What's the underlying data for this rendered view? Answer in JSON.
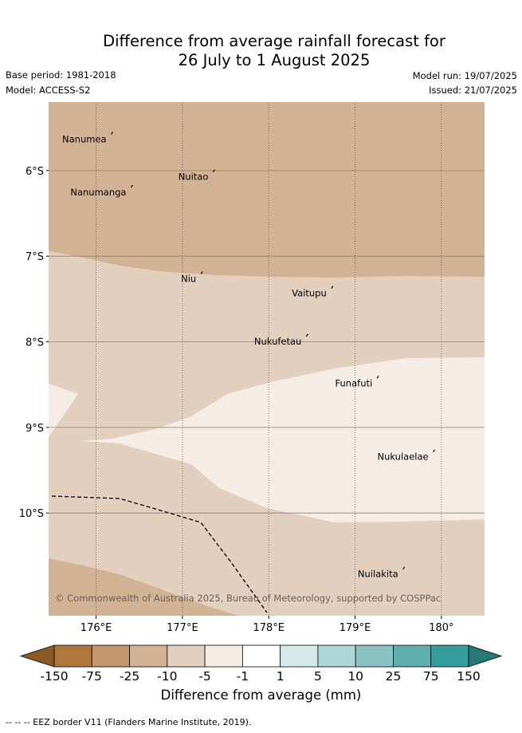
{
  "title": {
    "line1": "Difference from average rainfall forecast for",
    "line2": "26 July to 1 August 2025"
  },
  "meta": {
    "base_period": "Base period: 1981-2018",
    "model": "Model: ACCESS-S2",
    "model_run": "Model run: 19/07/2025",
    "issued": "Issued: 21/07/2025"
  },
  "map": {
    "lon_range": [
      175.45,
      180.5
    ],
    "lat_range": [
      -11.2,
      -5.2
    ],
    "lat_ticks": [
      {
        "value": -6,
        "label": "6°S"
      },
      {
        "value": -7,
        "label": "7°S"
      },
      {
        "value": -8,
        "label": "8°S"
      },
      {
        "value": -9,
        "label": "9°S"
      },
      {
        "value": -10,
        "label": "10°S"
      }
    ],
    "lon_ticks": [
      {
        "value": 176,
        "label": "176°E"
      },
      {
        "value": 177,
        "label": "177°E"
      },
      {
        "value": 178,
        "label": "178°E"
      },
      {
        "value": 179,
        "label": "179°E"
      },
      {
        "value": 180,
        "label": "180°"
      }
    ],
    "places": [
      {
        "name": "Nanumea",
        "lon": 176.12,
        "lat": -5.67
      },
      {
        "name": "Nuitao",
        "lon": 177.3,
        "lat": -6.11
      },
      {
        "name": "Nanumanga",
        "lon": 176.35,
        "lat": -6.29
      },
      {
        "name": "Niu",
        "lon": 177.16,
        "lat": -7.3
      },
      {
        "name": "Vaitupu",
        "lon": 178.67,
        "lat": -7.47
      },
      {
        "name": "Nukufetau",
        "lon": 178.38,
        "lat": -8.03
      },
      {
        "name": "Funafuti",
        "lon": 179.2,
        "lat": -8.52
      },
      {
        "name": "Nukulaelae",
        "lon": 179.85,
        "lat": -9.38
      },
      {
        "name": "Nuilakita",
        "lon": 179.5,
        "lat": -10.75
      }
    ],
    "copyright": "© Commonwealth of Australia 2025, Bureau of Meteorology, supported by COSPPac"
  },
  "legend": {
    "caption": "Difference from average (mm)",
    "labels": [
      "-150",
      "-75",
      "-25",
      "-10",
      "-5",
      "-1",
      "1",
      "5",
      "10",
      "25",
      "75",
      "150"
    ],
    "colors": [
      "#8a5a26",
      "#b0773d",
      "#c4966b",
      "#d2b294",
      "#e2cfbe",
      "#f5ece6",
      "#ffffff",
      "#d5e9e8",
      "#add7d6",
      "#88c2c2",
      "#5eafad",
      "#359d9b",
      "#257978"
    ]
  },
  "footer": "-- -- -- EEZ border V11 (Flanders Marine Institute, 2019)."
}
